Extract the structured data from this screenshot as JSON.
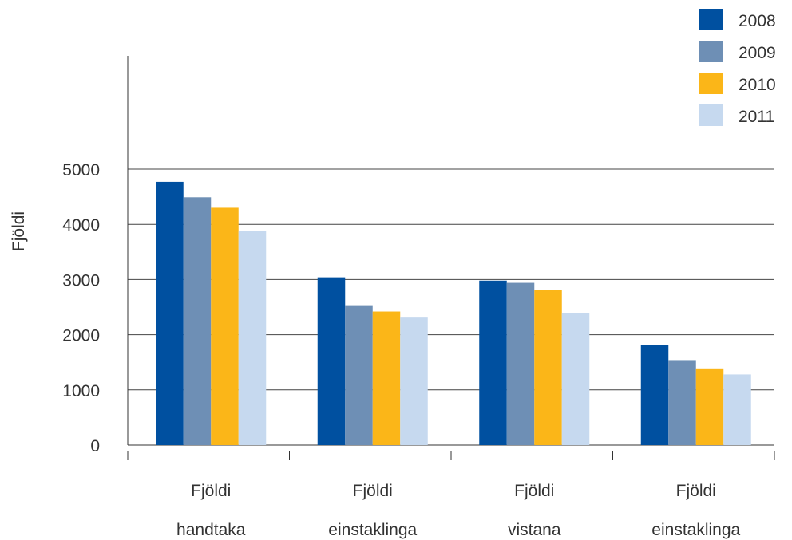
{
  "chart_data": {
    "type": "bar",
    "title": "",
    "xlabel": "",
    "ylabel": "Fjöldi",
    "ylim": [
      0,
      5000
    ],
    "yticks": [
      0,
      1000,
      2000,
      3000,
      4000,
      5000
    ],
    "grid": true,
    "legend_position": "top-right",
    "categories": [
      [
        "Fjöldi",
        "handtaka"
      ],
      [
        "Fjöldi",
        "einstaklinga"
      ],
      [
        "Fjöldi",
        "vistana"
      ],
      [
        "Fjöldi",
        "einstaklinga"
      ]
    ],
    "series": [
      {
        "name": "2008",
        "color": "#0050a0",
        "values": [
          4770,
          3040,
          2980,
          1810
        ]
      },
      {
        "name": "2009",
        "color": "#6e8fb5",
        "values": [
          4490,
          2520,
          2940,
          1540
        ]
      },
      {
        "name": "2010",
        "color": "#fbb618",
        "values": [
          4300,
          2420,
          2810,
          1390
        ]
      },
      {
        "name": "2011",
        "color": "#c6d9ef",
        "values": [
          3880,
          2310,
          2390,
          1280
        ]
      }
    ]
  }
}
